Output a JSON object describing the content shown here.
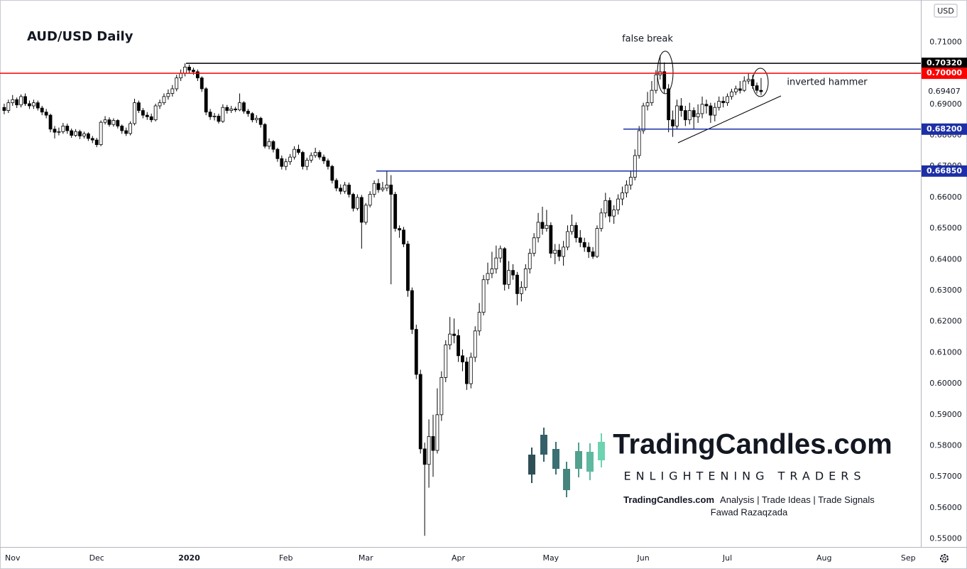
{
  "chart_data": {
    "type": "candlestick",
    "title": "AUD/USD Daily",
    "currency": "USD",
    "open": [
      0.689,
      0.688,
      0.6905,
      0.6915,
      0.6898,
      0.6925,
      0.6902,
      0.6895,
      0.6905,
      0.6888,
      0.6875,
      0.6865,
      0.682,
      0.681,
      0.6812,
      0.683,
      0.6815,
      0.68,
      0.6812,
      0.6798,
      0.6805,
      0.679,
      0.6785,
      0.677,
      0.6842,
      0.685,
      0.6835,
      0.6848,
      0.683,
      0.6815,
      0.6806,
      0.6838,
      0.6905,
      0.688,
      0.6865,
      0.686,
      0.685,
      0.6895,
      0.6905,
      0.6925,
      0.6935,
      0.695,
      0.6985,
      0.7,
      0.702,
      0.701,
      0.7005,
      0.6985,
      0.695,
      0.6875,
      0.686,
      0.6862,
      0.6845,
      0.689,
      0.688,
      0.6885,
      0.6882,
      0.6905,
      0.6878,
      0.687,
      0.685,
      0.6855,
      0.6835,
      0.6765,
      0.678,
      0.6755,
      0.6725,
      0.67,
      0.6715,
      0.673,
      0.6755,
      0.6745,
      0.67,
      0.672,
      0.6735,
      0.6745,
      0.673,
      0.6718,
      0.67,
      0.6655,
      0.663,
      0.662,
      0.664,
      0.661,
      0.6565,
      0.66,
      0.652,
      0.6575,
      0.661,
      0.6645,
      0.6625,
      0.663,
      0.664,
      0.661,
      0.65,
      0.6495,
      0.645,
      0.63,
      0.6175,
      0.603,
      0.579,
      0.574,
      0.583,
      0.5785,
      0.59,
      0.602,
      0.6125,
      0.616,
      0.6155,
      0.609,
      0.607,
      0.6,
      0.6085,
      0.617,
      0.623,
      0.6335,
      0.6355,
      0.637,
      0.6405,
      0.6435,
      0.632,
      0.6365,
      0.635,
      0.629,
      0.631,
      0.637,
      0.642,
      0.647,
      0.652,
      0.65,
      0.651,
      0.642,
      0.643,
      0.641,
      0.644,
      0.649,
      0.651,
      0.647,
      0.6455,
      0.644,
      0.6425,
      0.641,
      0.65,
      0.655,
      0.659,
      0.654,
      0.656,
      0.6595,
      0.6615,
      0.664,
      0.6665,
      0.6735,
      0.6815,
      0.6895,
      0.6905,
      0.6945,
      0.6995,
      0.7005,
      0.695,
      0.685,
      0.683,
      0.6895,
      0.688,
      0.685,
      0.688,
      0.686,
      0.687,
      0.69,
      0.6895,
      0.6865,
      0.689,
      0.691,
      0.6905,
      0.6925,
      0.694,
      0.695,
      0.6945,
      0.6975,
      0.698,
      0.696,
      0.6945
    ],
    "high": [
      0.6902,
      0.6915,
      0.693,
      0.6922,
      0.6932,
      0.6935,
      0.6912,
      0.6915,
      0.6912,
      0.6895,
      0.6885,
      0.687,
      0.683,
      0.6825,
      0.684,
      0.6838,
      0.6822,
      0.682,
      0.6818,
      0.6812,
      0.681,
      0.6798,
      0.6792,
      0.6848,
      0.6862,
      0.6858,
      0.6855,
      0.6852,
      0.6835,
      0.6825,
      0.6845,
      0.6918,
      0.6912,
      0.6888,
      0.6875,
      0.687,
      0.6902,
      0.6915,
      0.6935,
      0.6948,
      0.6962,
      0.6995,
      0.7012,
      0.7032,
      0.7028,
      0.7018,
      0.7012,
      0.699,
      0.6955,
      0.6885,
      0.6872,
      0.687,
      0.69,
      0.6898,
      0.6895,
      0.6892,
      0.6935,
      0.691,
      0.6885,
      0.6875,
      0.6865,
      0.686,
      0.684,
      0.679,
      0.6785,
      0.676,
      0.6735,
      0.6725,
      0.674,
      0.6765,
      0.677,
      0.675,
      0.6728,
      0.6745,
      0.676,
      0.6752,
      0.6738,
      0.6725,
      0.6705,
      0.6662,
      0.6642,
      0.665,
      0.6648,
      0.6615,
      0.661,
      0.6608,
      0.6582,
      0.662,
      0.6655,
      0.666,
      0.665,
      0.6685,
      0.6672,
      0.6618,
      0.651,
      0.6505,
      0.646,
      0.631,
      0.619,
      0.6045,
      0.581,
      0.5885,
      0.59,
      0.5985,
      0.604,
      0.614,
      0.6215,
      0.621,
      0.6175,
      0.611,
      0.6085,
      0.61,
      0.6185,
      0.626,
      0.635,
      0.639,
      0.6425,
      0.6445,
      0.6445,
      0.644,
      0.6395,
      0.6385,
      0.636,
      0.633,
      0.6385,
      0.6435,
      0.6485,
      0.655,
      0.657,
      0.656,
      0.652,
      0.645,
      0.645,
      0.646,
      0.651,
      0.6545,
      0.652,
      0.6495,
      0.647,
      0.6455,
      0.644,
      0.651,
      0.6565,
      0.6615,
      0.66,
      0.6575,
      0.661,
      0.6635,
      0.6655,
      0.6685,
      0.6755,
      0.683,
      0.6905,
      0.694,
      0.6975,
      0.701,
      0.7058,
      0.7035,
      0.6965,
      0.688,
      0.6915,
      0.692,
      0.6895,
      0.6905,
      0.689,
      0.69,
      0.6925,
      0.6915,
      0.6905,
      0.6905,
      0.6925,
      0.6925,
      0.6935,
      0.695,
      0.696,
      0.6975,
      0.699,
      0.7,
      0.6995,
      0.697,
      0.6985
    ],
    "low": [
      0.6868,
      0.6872,
      0.6895,
      0.6888,
      0.689,
      0.6895,
      0.6885,
      0.6885,
      0.688,
      0.6865,
      0.6855,
      0.681,
      0.679,
      0.68,
      0.6805,
      0.6805,
      0.6792,
      0.6795,
      0.6788,
      0.679,
      0.6782,
      0.6775,
      0.6762,
      0.6765,
      0.6835,
      0.6828,
      0.6828,
      0.6822,
      0.6805,
      0.6798,
      0.68,
      0.6832,
      0.6872,
      0.6855,
      0.685,
      0.6842,
      0.6845,
      0.6885,
      0.6898,
      0.6915,
      0.6925,
      0.6942,
      0.6975,
      0.699,
      0.7,
      0.6995,
      0.6975,
      0.694,
      0.6865,
      0.685,
      0.6848,
      0.6838,
      0.684,
      0.687,
      0.6872,
      0.6875,
      0.6878,
      0.687,
      0.686,
      0.6842,
      0.684,
      0.6825,
      0.6758,
      0.6755,
      0.6745,
      0.6715,
      0.669,
      0.6688,
      0.6705,
      0.6722,
      0.6738,
      0.669,
      0.6688,
      0.6712,
      0.6728,
      0.6722,
      0.6708,
      0.669,
      0.6645,
      0.662,
      0.661,
      0.6612,
      0.66,
      0.6555,
      0.6558,
      0.6435,
      0.6512,
      0.6568,
      0.66,
      0.6615,
      0.6618,
      0.662,
      0.632,
      0.649,
      0.647,
      0.644,
      0.628,
      0.616,
      0.6015,
      0.5775,
      0.551,
      0.5665,
      0.57,
      0.5775,
      0.588,
      0.6005,
      0.611,
      0.613,
      0.607,
      0.604,
      0.598,
      0.5985,
      0.607,
      0.6155,
      0.622,
      0.632,
      0.634,
      0.6355,
      0.639,
      0.63,
      0.6305,
      0.6335,
      0.6253,
      0.6265,
      0.63,
      0.6355,
      0.641,
      0.6455,
      0.648,
      0.649,
      0.6405,
      0.6385,
      0.6395,
      0.638,
      0.643,
      0.648,
      0.6455,
      0.644,
      0.6425,
      0.6405,
      0.6402,
      0.6405,
      0.649,
      0.6535,
      0.652,
      0.6515,
      0.6545,
      0.6575,
      0.66,
      0.6625,
      0.6655,
      0.6725,
      0.6805,
      0.688,
      0.6895,
      0.6935,
      0.698,
      0.6935,
      0.681,
      0.6795,
      0.682,
      0.686,
      0.683,
      0.6835,
      0.682,
      0.684,
      0.6855,
      0.687,
      0.684,
      0.6845,
      0.688,
      0.689,
      0.6895,
      0.6915,
      0.693,
      0.6935,
      0.694,
      0.6965,
      0.695,
      0.6935,
      0.693
    ],
    "close": [
      0.688,
      0.6905,
      0.6915,
      0.6898,
      0.6925,
      0.6902,
      0.6895,
      0.6905,
      0.6888,
      0.6875,
      0.6865,
      0.682,
      0.681,
      0.6812,
      0.683,
      0.6815,
      0.68,
      0.6812,
      0.6798,
      0.6805,
      0.679,
      0.6785,
      0.677,
      0.6842,
      0.685,
      0.6835,
      0.6848,
      0.683,
      0.6815,
      0.6806,
      0.6838,
      0.6905,
      0.688,
      0.6865,
      0.686,
      0.685,
      0.6895,
      0.6905,
      0.6925,
      0.6935,
      0.695,
      0.6985,
      0.7,
      0.702,
      0.701,
      0.7005,
      0.6985,
      0.695,
      0.6875,
      0.686,
      0.6862,
      0.6845,
      0.689,
      0.688,
      0.6885,
      0.6882,
      0.6905,
      0.6878,
      0.687,
      0.685,
      0.6855,
      0.6835,
      0.6765,
      0.678,
      0.6755,
      0.6725,
      0.67,
      0.6715,
      0.673,
      0.6755,
      0.6745,
      0.67,
      0.672,
      0.6735,
      0.6745,
      0.673,
      0.6718,
      0.67,
      0.6655,
      0.663,
      0.662,
      0.664,
      0.661,
      0.6565,
      0.66,
      0.652,
      0.6575,
      0.661,
      0.6645,
      0.6625,
      0.663,
      0.664,
      0.661,
      0.65,
      0.6495,
      0.645,
      0.63,
      0.6175,
      0.603,
      0.579,
      0.574,
      0.583,
      0.5785,
      0.59,
      0.602,
      0.6125,
      0.616,
      0.6155,
      0.609,
      0.607,
      0.6,
      0.6085,
      0.617,
      0.623,
      0.6335,
      0.6355,
      0.637,
      0.6405,
      0.6435,
      0.632,
      0.6365,
      0.635,
      0.629,
      0.631,
      0.637,
      0.642,
      0.647,
      0.652,
      0.65,
      0.651,
      0.642,
      0.643,
      0.641,
      0.644,
      0.649,
      0.651,
      0.647,
      0.6455,
      0.644,
      0.6425,
      0.641,
      0.65,
      0.655,
      0.659,
      0.654,
      0.656,
      0.6595,
      0.6615,
      0.664,
      0.6665,
      0.6735,
      0.6815,
      0.6895,
      0.6905,
      0.6945,
      0.6995,
      0.7005,
      0.695,
      0.685,
      0.683,
      0.6895,
      0.688,
      0.685,
      0.688,
      0.686,
      0.687,
      0.69,
      0.6895,
      0.6865,
      0.689,
      0.691,
      0.6905,
      0.6925,
      0.694,
      0.695,
      0.6945,
      0.6975,
      0.698,
      0.696,
      0.6945,
      0.69407
    ],
    "last_price_label": "0.69407",
    "up_color": "#ffffff",
    "down_color": "#000000",
    "wick_color": "#000000",
    "xlim": [
      -1,
      218
    ],
    "xticks": [
      {
        "value": 2,
        "label": "Nov"
      },
      {
        "value": 22,
        "label": "Dec"
      },
      {
        "value": 44,
        "label": "2020"
      },
      {
        "value": 67,
        "label": "Feb"
      },
      {
        "value": 86,
        "label": "Mar"
      },
      {
        "value": 108,
        "label": "Apr"
      },
      {
        "value": 130,
        "label": "May"
      },
      {
        "value": 152,
        "label": "Jun"
      },
      {
        "value": 172,
        "label": "Jul"
      },
      {
        "value": 195,
        "label": "Aug"
      },
      {
        "value": 215,
        "label": "Sep"
      }
    ],
    "ylim": [
      0.5474,
      0.7236
    ],
    "yticks": [
      {
        "value": 0.55,
        "label": "0.55000"
      },
      {
        "value": 0.56,
        "label": "0.56000"
      },
      {
        "value": 0.57,
        "label": "0.57000"
      },
      {
        "value": 0.58,
        "label": "0.58000"
      },
      {
        "value": 0.59,
        "label": "0.59000"
      },
      {
        "value": 0.6,
        "label": "0.60000"
      },
      {
        "value": 0.61,
        "label": "0.61000"
      },
      {
        "value": 0.62,
        "label": "0.62000"
      },
      {
        "value": 0.63,
        "label": "0.63000"
      },
      {
        "value": 0.64,
        "label": "0.64000"
      },
      {
        "value": 0.65,
        "label": "0.65000"
      },
      {
        "value": 0.66,
        "label": "0.66000"
      },
      {
        "value": 0.67,
        "label": "0.67000"
      },
      {
        "value": 0.68,
        "label": "0.68000"
      },
      {
        "value": 0.69,
        "label": "0.69000"
      },
      {
        "value": 0.71,
        "label": "0.71000"
      }
    ],
    "grid": false,
    "levels": [
      {
        "value": 0.7032,
        "label": "0.70320",
        "color": "#000000"
      },
      {
        "value": 0.7,
        "label": "0.70000",
        "color": "#ff0000"
      },
      {
        "value": 0.682,
        "label": "0.68200",
        "color": "#1c2fa6"
      },
      {
        "value": 0.6685,
        "label": "0.66850",
        "color": "#1c2fa6"
      }
    ],
    "annotations": [
      "false break",
      "inverted hammer"
    ]
  },
  "watermark": {
    "brand": "TradingCandles.com",
    "tagline": "ENLIGHTENING TRADERS",
    "site": "TradingCandles.com",
    "services": "Analysis | Trade Ideas | Trade Signals",
    "author": "Fawad Razaqzada"
  }
}
